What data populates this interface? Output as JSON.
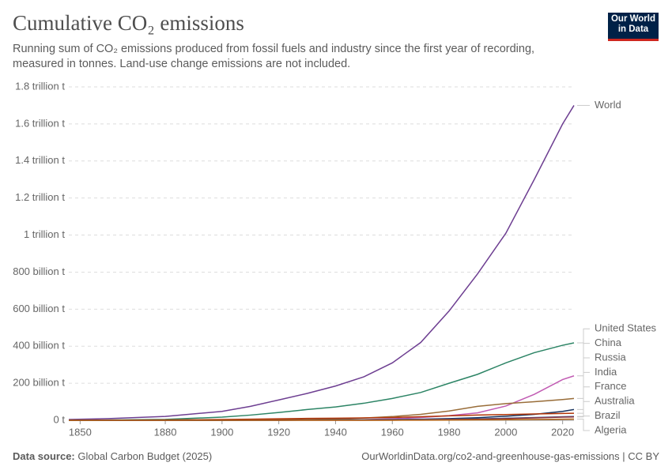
{
  "chart_data": {
    "type": "line",
    "title": "Cumulative CO₂ emissions",
    "subtitle": "Running sum of CO₂ emissions produced from fossil fuels and industry since the first year of recording, measured in tonnes. Land-use change emissions are not included.",
    "logo": "Our World in Data",
    "source_label": "Data source:",
    "source": "Global Carbon Budget (2025)",
    "footer_right": "OurWorldinData.org/co2-and-greenhouse-gas-emissions | CC BY",
    "x": [
      1846,
      1860,
      1880,
      1900,
      1910,
      1920,
      1930,
      1940,
      1950,
      1960,
      1970,
      1980,
      1990,
      2000,
      2010,
      2020,
      2024
    ],
    "xlim": [
      1846,
      2024
    ],
    "xticks": [
      1850,
      1880,
      1900,
      1920,
      1940,
      1960,
      1980,
      2000,
      2020
    ],
    "ylim": [
      0,
      1800000000000.0
    ],
    "yticks": [
      {
        "value": 0,
        "label": "0 t"
      },
      {
        "value": 200000000000.0,
        "label": "200 billion t"
      },
      {
        "value": 400000000000.0,
        "label": "400 billion t"
      },
      {
        "value": 600000000000.0,
        "label": "600 billion t"
      },
      {
        "value": 800000000000.0,
        "label": "800 billion t"
      },
      {
        "value": 1000000000000.0,
        "label": "1 trillion t"
      },
      {
        "value": 1200000000000.0,
        "label": "1.2 trillion t"
      },
      {
        "value": 1400000000000.0,
        "label": "1.4 trillion t"
      },
      {
        "value": 1600000000000.0,
        "label": "1.6 trillion t"
      },
      {
        "value": 1800000000000.0,
        "label": "1.8 trillion t"
      }
    ],
    "grid": true,
    "series": [
      {
        "name": "World",
        "color": "#6d3e91",
        "values": [
          4000000000.0,
          9000000000.0,
          21000000000.0,
          48000000000.0,
          75000000000.0,
          110000000000.0,
          145000000000.0,
          185000000000.0,
          235000000000.0,
          310000000000.0,
          420000000000.0,
          590000000000.0,
          790000000000.0,
          1010000000000.0,
          1300000000000.0,
          1600000000000.0,
          1700000000000.0
        ]
      },
      {
        "name": "United States",
        "color": "#2c8465",
        "values": [
          500000000.0,
          1500000000.0,
          5000000000.0,
          17000000000.0,
          28000000000.0,
          42000000000.0,
          58000000000.0,
          72000000000.0,
          92000000000.0,
          118000000000.0,
          150000000000.0,
          200000000000.0,
          248000000000.0,
          310000000000.0,
          365000000000.0,
          405000000000.0,
          418000000000.0
        ]
      },
      {
        "name": "China",
        "color": "#c15bb3",
        "values": [
          0,
          0,
          0,
          100000000.0,
          300000000.0,
          500000000.0,
          1000000000.0,
          2000000000.0,
          3000000000.0,
          8000000000.0,
          15000000000.0,
          25000000000.0,
          40000000000.0,
          77000000000.0,
          140000000000.0,
          220000000000.0,
          240000000000.0
        ]
      },
      {
        "name": "Russia",
        "color": "#996d39",
        "values": [
          0,
          0,
          200000000.0,
          1000000000.0,
          2000000000.0,
          3000000000.0,
          4000000000.0,
          7000000000.0,
          12000000000.0,
          20000000000.0,
          32000000000.0,
          50000000000.0,
          75000000000.0,
          90000000000.0,
          100000000000.0,
          112000000000.0,
          118000000000.0
        ]
      },
      {
        "name": "India",
        "color": "#16325c",
        "values": [
          0,
          0,
          0,
          200000000.0,
          500000000.0,
          1000000000.0,
          1500000000.0,
          2000000000.0,
          3000000000.0,
          4000000000.0,
          6000000000.0,
          9000000000.0,
          14000000000.0,
          22000000000.0,
          32000000000.0,
          48000000000.0,
          58000000000.0
        ]
      },
      {
        "name": "France",
        "color": "#b13507",
        "values": [
          200000000.0,
          600000000.0,
          2000000000.0,
          4000000000.0,
          6000000000.0,
          8000000000.0,
          10000000000.0,
          11000000000.0,
          13000000000.0,
          15000000000.0,
          19000000000.0,
          24000000000.0,
          28000000000.0,
          31000000000.0,
          34000000000.0,
          37000000000.0,
          38000000000.0
        ]
      },
      {
        "name": "Australia",
        "color": "#4c6a9c",
        "values": [
          0,
          0,
          0,
          200000000.0,
          400000000.0,
          700000000.0,
          1000000000.0,
          1500000000.0,
          2000000000.0,
          3000000000.0,
          4000000000.0,
          6000000000.0,
          8000000000.0,
          11000000000.0,
          15000000000.0,
          19000000000.0,
          21000000000.0
        ]
      },
      {
        "name": "Brazil",
        "color": "#883039",
        "values": [
          0,
          0,
          0,
          0,
          100000000.0,
          200000000.0,
          300000000.0,
          400000000.0,
          600000000.0,
          1000000000.0,
          2000000000.0,
          4000000000.0,
          6000000000.0,
          9000000000.0,
          13000000000.0,
          17000000000.0,
          18000000000.0
        ]
      },
      {
        "name": "Algeria",
        "color": "#b16214",
        "values": [
          0,
          0,
          0,
          0,
          0,
          0,
          0,
          0,
          100000000.0,
          200000000.0,
          500000000.0,
          1000000000.0,
          2000000000.0,
          3000000000.0,
          4500000000.0,
          6000000000.0,
          6500000000.0
        ]
      }
    ]
  }
}
